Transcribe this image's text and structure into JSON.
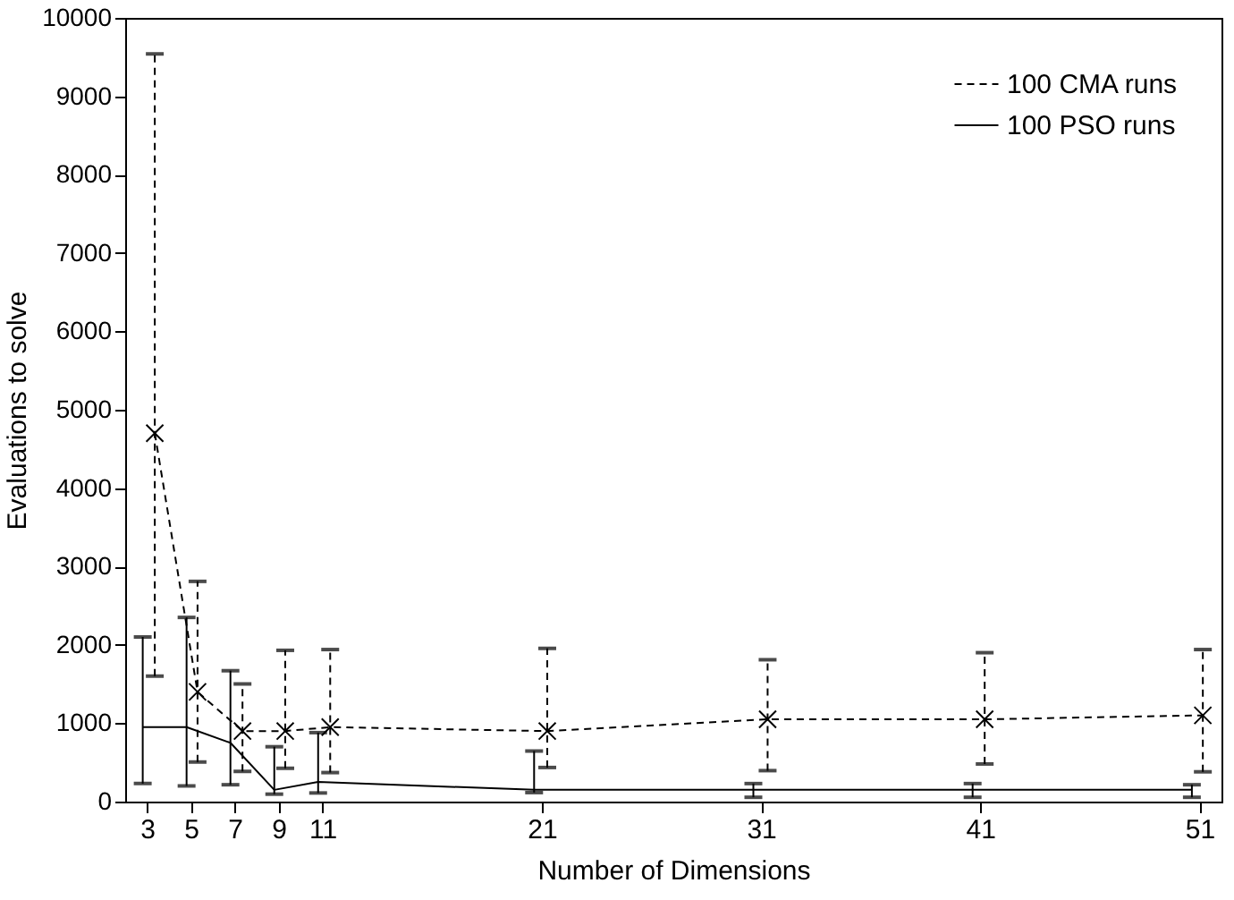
{
  "chart_data": {
    "type": "line",
    "xlabel": "Number of Dimensions",
    "ylabel": "Evaluations to solve",
    "xlim": [
      2,
      52
    ],
    "xticks": [
      3,
      5,
      7,
      9,
      11,
      21,
      31,
      41,
      51
    ],
    "ylim": [
      0,
      10000
    ],
    "yticks": [
      0,
      1000,
      2000,
      3000,
      4000,
      5000,
      6000,
      7000,
      8000,
      9000,
      10000
    ],
    "grid": false,
    "legend": "top right",
    "series": [
      {
        "name": "100 CMA runs",
        "color": "#000000",
        "line_style": "dashed",
        "marker": "cross",
        "x": [
          3.35,
          5.3,
          7.35,
          9.3,
          11.35,
          21.25,
          31.3,
          41.2,
          51.15
        ],
        "values": [
          4700,
          1400,
          900,
          900,
          950,
          900,
          1050,
          1050,
          1100
        ],
        "errors": [
          [
            1600,
            9540
          ],
          [
            505,
            2810
          ],
          [
            385,
            1500
          ],
          [
            425,
            1930
          ],
          [
            370,
            1940
          ],
          [
            435,
            1955
          ],
          [
            395,
            1810
          ],
          [
            480,
            1900
          ],
          [
            380,
            1940
          ]
        ]
      },
      {
        "name": "100 PSO runs",
        "color": "#000000",
        "line_style": "solid",
        "marker": "none",
        "x": [
          2.8,
          4.8,
          6.8,
          8.8,
          10.8,
          20.65,
          30.65,
          40.65,
          50.65
        ],
        "values": [
          950,
          950,
          750,
          150,
          250,
          150,
          150,
          150,
          150
        ],
        "errors": [
          [
            230,
            2100
          ],
          [
            200,
            2350
          ],
          [
            215,
            1670
          ],
          [
            95,
            700
          ],
          [
            110,
            880
          ],
          [
            115,
            645
          ],
          [
            55,
            230
          ],
          [
            55,
            230
          ],
          [
            55,
            215
          ]
        ]
      }
    ]
  }
}
